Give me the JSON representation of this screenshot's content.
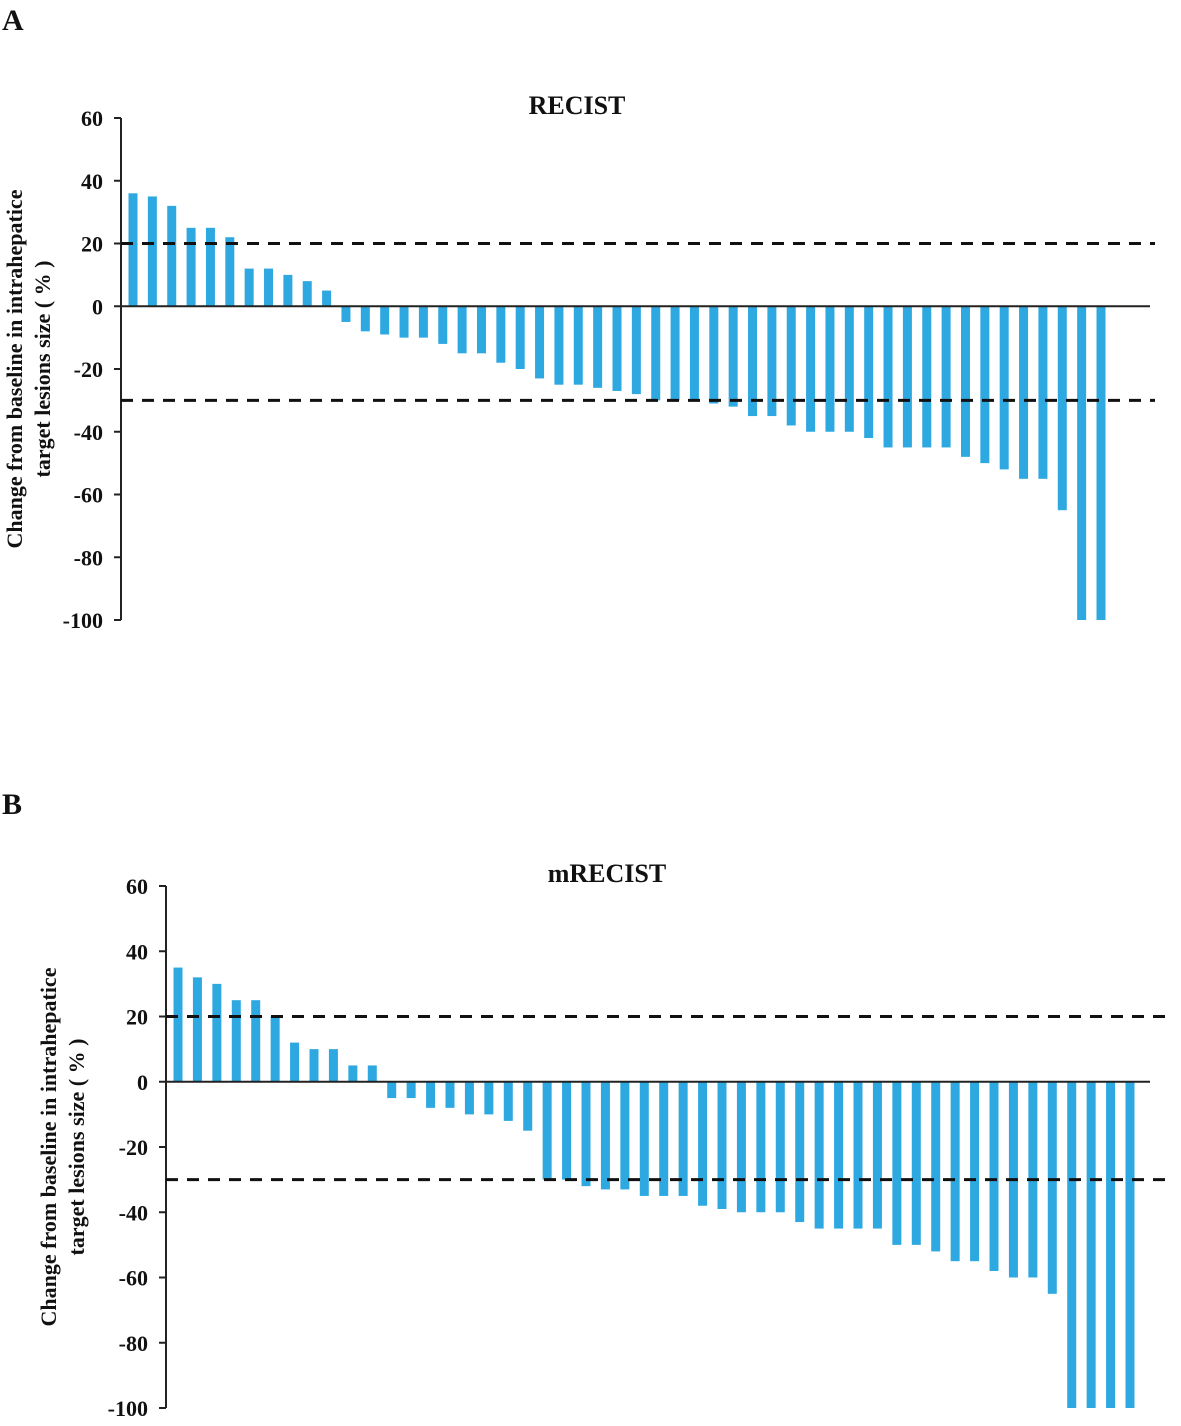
{
  "panels": [
    {
      "label": "A"
    },
    {
      "label": "B"
    }
  ],
  "chart_data": [
    {
      "type": "bar",
      "title": "RECIST",
      "ylabel_lines": [
        "Change from baseline in intrahepatice",
        "target lesions size ( % )"
      ],
      "ylim": [
        -100,
        60
      ],
      "yticks": [
        60,
        40,
        20,
        0,
        -20,
        -40,
        -60,
        -80,
        -100
      ],
      "reference_lines": [
        20,
        -30
      ],
      "bar_color": "#2ea8e0",
      "values": [
        36,
        35,
        32,
        25,
        25,
        22,
        12,
        12,
        10,
        8,
        5,
        -5,
        -8,
        -9,
        -10,
        -10,
        -12,
        -15,
        -15,
        -18,
        -20,
        -23,
        -25,
        -25,
        -26,
        -27,
        -28,
        -30,
        -30,
        -30,
        -31,
        -32,
        -35,
        -35,
        -38,
        -40,
        -40,
        -40,
        -42,
        -45,
        -45,
        -45,
        -45,
        -48,
        -50,
        -52,
        -55,
        -55,
        -65,
        -100,
        -100
      ]
    },
    {
      "type": "bar",
      "title": "mRECIST",
      "ylabel_lines": [
        "Change from baseline in intrahepatice",
        "target lesions size ( % )"
      ],
      "ylim": [
        -100,
        60
      ],
      "yticks": [
        60,
        40,
        20,
        0,
        -20,
        -40,
        -60,
        -80,
        -100
      ],
      "reference_lines": [
        20,
        -30
      ],
      "bar_color": "#2ea8e0",
      "values": [
        35,
        32,
        30,
        25,
        25,
        20,
        12,
        10,
        10,
        5,
        5,
        -5,
        -5,
        -8,
        -8,
        -10,
        -10,
        -12,
        -15,
        -30,
        -30,
        -32,
        -33,
        -33,
        -35,
        -35,
        -35,
        -38,
        -39,
        -40,
        -40,
        -40,
        -43,
        -45,
        -45,
        -45,
        -45,
        -50,
        -50,
        -52,
        -55,
        -55,
        -58,
        -60,
        -60,
        -65,
        -100,
        -100,
        -100,
        -100
      ]
    }
  ]
}
